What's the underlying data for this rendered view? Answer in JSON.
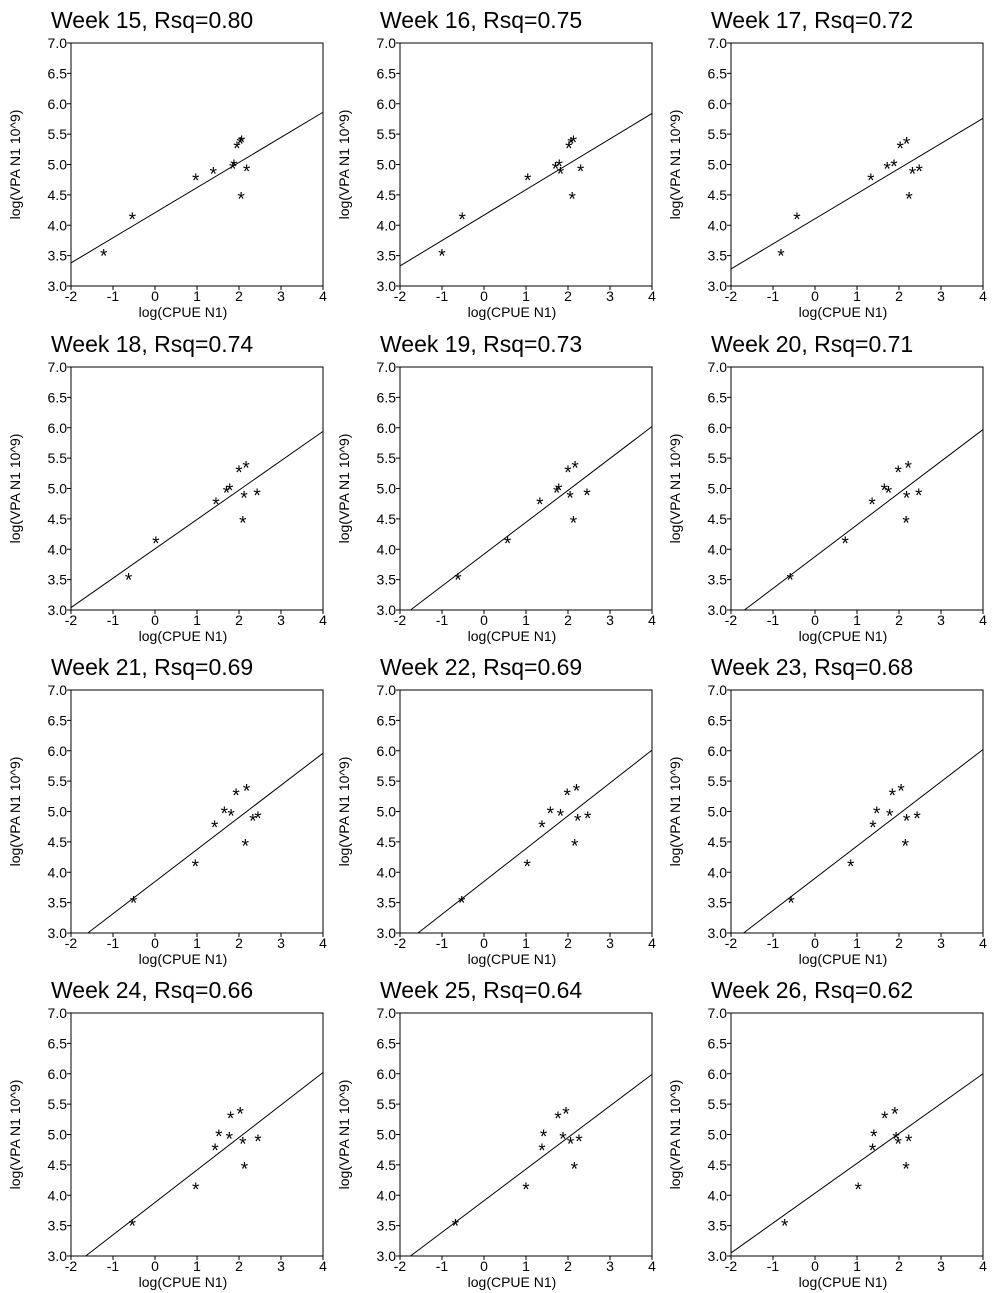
{
  "chart_data": [
    {
      "type": "scatter",
      "title": "Week 15, Rsq=0.80",
      "xlabel": "log(CPUE N1)",
      "ylabel": "log(VPA N1 10^9)",
      "xlim": [
        -2,
        4
      ],
      "ylim": [
        3.0,
        7.0
      ],
      "x_ticks": [
        "-2",
        "-1",
        "0",
        "1",
        "2",
        "3",
        "4"
      ],
      "y_ticks": [
        "3.0",
        "3.5",
        "4.0",
        "4.5",
        "5.0",
        "5.5",
        "6.0",
        "6.5",
        "7.0"
      ],
      "fit_line": [
        [
          -2,
          3.38
        ],
        [
          4,
          5.86
        ]
      ],
      "x": [
        -1.22,
        -0.54,
        0.97,
        1.39,
        1.85,
        1.88,
        1.95,
        2.03,
        2.05,
        2.06,
        2.18
      ],
      "y": [
        3.52,
        4.12,
        4.76,
        4.87,
        4.95,
        4.99,
        5.29,
        5.36,
        4.46,
        5.39,
        4.91
      ]
    },
    {
      "type": "scatter",
      "title": "Week 16, Rsq=0.75",
      "xlabel": "log(CPUE N1)",
      "ylabel": "log(VPA N1 10^9)",
      "xlim": [
        -2,
        4
      ],
      "ylim": [
        3.0,
        7.0
      ],
      "x_ticks": [
        "-2",
        "-1",
        "0",
        "1",
        "2",
        "3",
        "4"
      ],
      "y_ticks": [
        "3.0",
        "3.5",
        "4.0",
        "4.5",
        "5.0",
        "5.5",
        "6.0",
        "6.5",
        "7.0"
      ],
      "fit_line": [
        [
          -2,
          3.33
        ],
        [
          4,
          5.84
        ]
      ],
      "x": [
        -1.0,
        -0.52,
        1.04,
        1.7,
        1.79,
        1.82,
        2.02,
        2.07,
        2.1,
        2.13,
        2.3
      ],
      "y": [
        3.52,
        4.12,
        4.76,
        4.95,
        4.99,
        4.87,
        5.29,
        5.36,
        4.46,
        5.39,
        4.91
      ]
    },
    {
      "type": "scatter",
      "title": "Week 17, Rsq=0.72",
      "xlabel": "log(CPUE N1)",
      "ylabel": "log(VPA N1 10^9)",
      "xlim": [
        -2,
        4
      ],
      "ylim": [
        3.0,
        7.0
      ],
      "x_ticks": [
        "-2",
        "-1",
        "0",
        "1",
        "2",
        "3",
        "4"
      ],
      "y_ticks": [
        "3.0",
        "3.5",
        "4.0",
        "4.5",
        "5.0",
        "5.5",
        "6.0",
        "6.5",
        "7.0"
      ],
      "fit_line": [
        [
          -2,
          3.28
        ],
        [
          4,
          5.76
        ]
      ],
      "x": [
        -0.81,
        -0.43,
        1.33,
        1.72,
        1.88,
        2.03,
        2.18,
        2.24,
        2.32,
        2.48
      ],
      "y": [
        3.52,
        4.12,
        4.76,
        4.95,
        4.99,
        5.29,
        5.36,
        4.46,
        4.87,
        4.91
      ]
    },
    {
      "type": "scatter",
      "title": "Week 18, Rsq=0.74",
      "xlabel": "log(CPUE N1)",
      "ylabel": "log(VPA N1 10^9)",
      "xlim": [
        -2,
        4
      ],
      "ylim": [
        3.0,
        7.0
      ],
      "x_ticks": [
        "-2",
        "-1",
        "0",
        "1",
        "2",
        "3",
        "4"
      ],
      "y_ticks": [
        "3.0",
        "3.5",
        "4.0",
        "4.5",
        "5.0",
        "5.5",
        "6.0",
        "6.5",
        "7.0"
      ],
      "fit_line": [
        [
          -2,
          3.04
        ],
        [
          4,
          5.94
        ]
      ],
      "x": [
        -0.63,
        0.02,
        1.45,
        1.7,
        1.78,
        2.0,
        2.09,
        2.12,
        2.17,
        2.43
      ],
      "y": [
        3.52,
        4.12,
        4.76,
        4.95,
        4.99,
        5.29,
        4.46,
        4.87,
        5.36,
        4.91
      ]
    },
    {
      "type": "scatter",
      "title": "Week 19, Rsq=0.73",
      "xlabel": "log(CPUE N1)",
      "ylabel": "log(VPA N1 10^9)",
      "xlim": [
        -2,
        4
      ],
      "ylim": [
        3.0,
        7.0
      ],
      "x_ticks": [
        "-2",
        "-1",
        "0",
        "1",
        "2",
        "3",
        "4"
      ],
      "y_ticks": [
        "3.0",
        "3.5",
        "4.0",
        "4.5",
        "5.0",
        "5.5",
        "6.0",
        "6.5",
        "7.0"
      ],
      "fit_line": [
        [
          -1.75,
          3.0
        ],
        [
          4,
          6.02
        ]
      ],
      "x": [
        -0.62,
        0.56,
        1.33,
        1.73,
        1.78,
        2.0,
        2.05,
        2.13,
        2.17,
        2.45
      ],
      "y": [
        3.52,
        4.12,
        4.76,
        4.95,
        4.99,
        5.29,
        4.87,
        4.46,
        5.36,
        4.91
      ]
    },
    {
      "type": "scatter",
      "title": "Week 20, Rsq=0.71",
      "xlabel": "log(CPUE N1)",
      "ylabel": "log(VPA N1 10^9)",
      "xlim": [
        -2,
        4
      ],
      "ylim": [
        3.0,
        7.0
      ],
      "x_ticks": [
        "-2",
        "-1",
        "0",
        "1",
        "2",
        "3",
        "4"
      ],
      "y_ticks": [
        "3.0",
        "3.5",
        "4.0",
        "4.5",
        "5.0",
        "5.5",
        "6.0",
        "6.5",
        "7.0"
      ],
      "fit_line": [
        [
          -1.68,
          3.0
        ],
        [
          4,
          5.97
        ]
      ],
      "x": [
        -0.59,
        0.72,
        1.36,
        1.65,
        1.75,
        1.98,
        2.17,
        2.18,
        2.22,
        2.47
      ],
      "y": [
        3.52,
        4.12,
        4.76,
        4.99,
        4.95,
        5.29,
        4.46,
        4.87,
        5.36,
        4.91
      ]
    },
    {
      "type": "scatter",
      "title": "Week 21, Rsq=0.69",
      "xlabel": "log(CPUE N1)",
      "ylabel": "log(VPA N1 10^9)",
      "xlim": [
        -2,
        4
      ],
      "ylim": [
        3.0,
        7.0
      ],
      "x_ticks": [
        "-2",
        "-1",
        "0",
        "1",
        "2",
        "3",
        "4"
      ],
      "y_ticks": [
        "3.0",
        "3.5",
        "4.0",
        "4.5",
        "5.0",
        "5.5",
        "6.0",
        "6.5",
        "7.0"
      ],
      "fit_line": [
        [
          -1.6,
          3.0
        ],
        [
          4,
          5.96
        ]
      ],
      "x": [
        -0.51,
        0.96,
        1.42,
        1.65,
        1.81,
        1.93,
        2.15,
        2.18,
        2.33,
        2.45
      ],
      "y": [
        3.52,
        4.12,
        4.76,
        4.99,
        4.95,
        5.29,
        4.46,
        5.36,
        4.87,
        4.91
      ]
    },
    {
      "type": "scatter",
      "title": "Week 22, Rsq=0.69",
      "xlabel": "log(CPUE N1)",
      "ylabel": "log(VPA N1 10^9)",
      "xlim": [
        -2,
        4
      ],
      "ylim": [
        3.0,
        7.0
      ],
      "x_ticks": [
        "-2",
        "-1",
        "0",
        "1",
        "2",
        "3",
        "4"
      ],
      "y_ticks": [
        "3.0",
        "3.5",
        "4.0",
        "4.5",
        "5.0",
        "5.5",
        "6.0",
        "6.5",
        "7.0"
      ],
      "fit_line": [
        [
          -1.57,
          3.0
        ],
        [
          4,
          6.01
        ]
      ],
      "x": [
        -0.53,
        1.03,
        1.38,
        1.58,
        1.82,
        1.98,
        2.16,
        2.2,
        2.23,
        2.47
      ],
      "y": [
        3.52,
        4.12,
        4.76,
        4.99,
        4.95,
        5.29,
        4.46,
        5.36,
        4.87,
        4.91
      ]
    },
    {
      "type": "scatter",
      "title": "Week 23, Rsq=0.68",
      "xlabel": "log(CPUE N1)",
      "ylabel": "log(VPA N1 10^9)",
      "xlim": [
        -2,
        4
      ],
      "ylim": [
        3.0,
        7.0
      ],
      "x_ticks": [
        "-2",
        "-1",
        "0",
        "1",
        "2",
        "3",
        "4"
      ],
      "y_ticks": [
        "3.0",
        "3.5",
        "4.0",
        "4.5",
        "5.0",
        "5.5",
        "6.0",
        "6.5",
        "7.0"
      ],
      "fit_line": [
        [
          -1.7,
          3.0
        ],
        [
          4,
          6.02
        ]
      ],
      "x": [
        -0.57,
        0.85,
        1.38,
        1.47,
        1.78,
        1.84,
        2.05,
        2.15,
        2.18,
        2.43
      ],
      "y": [
        3.52,
        4.12,
        4.76,
        4.99,
        4.95,
        5.29,
        5.36,
        4.46,
        4.87,
        4.91
      ]
    },
    {
      "type": "scatter",
      "title": "Week 24, Rsq=0.66",
      "xlabel": "log(CPUE N1)",
      "ylabel": "log(VPA N1 10^9)",
      "xlim": [
        -2,
        4
      ],
      "ylim": [
        3.0,
        7.0
      ],
      "x_ticks": [
        "-2",
        "-1",
        "0",
        "1",
        "2",
        "3",
        "4"
      ],
      "y_ticks": [
        "3.0",
        "3.5",
        "4.0",
        "4.5",
        "5.0",
        "5.5",
        "6.0",
        "6.5",
        "7.0"
      ],
      "fit_line": [
        [
          -1.65,
          3.0
        ],
        [
          4,
          6.02
        ]
      ],
      "x": [
        -0.54,
        0.97,
        1.43,
        1.52,
        1.77,
        1.8,
        2.03,
        2.09,
        2.13,
        2.45
      ],
      "y": [
        3.52,
        4.12,
        4.76,
        4.99,
        4.95,
        5.29,
        5.36,
        4.87,
        4.46,
        4.91
      ]
    },
    {
      "type": "scatter",
      "title": "Week 25, Rsq=0.64",
      "xlabel": "log(CPUE N1)",
      "ylabel": "log(VPA N1 10^9)",
      "xlim": [
        -2,
        4
      ],
      "ylim": [
        3.0,
        7.0
      ],
      "x_ticks": [
        "-2",
        "-1",
        "0",
        "1",
        "2",
        "3",
        "4"
      ],
      "y_ticks": [
        "3.0",
        "3.5",
        "4.0",
        "4.5",
        "5.0",
        "5.5",
        "6.0",
        "6.5",
        "7.0"
      ],
      "fit_line": [
        [
          -1.75,
          3.0
        ],
        [
          4,
          5.99
        ]
      ],
      "x": [
        -0.68,
        1.0,
        1.38,
        1.42,
        1.76,
        1.88,
        1.95,
        2.06,
        2.15,
        2.26
      ],
      "y": [
        3.52,
        4.12,
        4.76,
        4.99,
        5.29,
        4.95,
        5.36,
        4.87,
        4.46,
        4.91
      ]
    },
    {
      "type": "scatter",
      "title": "Week 26, Rsq=0.62",
      "xlabel": "log(CPUE N1)",
      "ylabel": "log(VPA N1 10^9)",
      "xlim": [
        -2,
        4
      ],
      "ylim": [
        3.0,
        7.0
      ],
      "x_ticks": [
        "-2",
        "-1",
        "0",
        "1",
        "2",
        "3",
        "4"
      ],
      "y_ticks": [
        "3.0",
        "3.5",
        "4.0",
        "4.5",
        "5.0",
        "5.5",
        "6.0",
        "6.5",
        "7.0"
      ],
      "fit_line": [
        [
          -2,
          3.05
        ],
        [
          4,
          6.0
        ]
      ],
      "x": [
        -0.72,
        1.03,
        1.37,
        1.4,
        1.66,
        1.9,
        1.93,
        1.98,
        2.17,
        2.23
      ],
      "y": [
        3.52,
        4.12,
        4.76,
        4.99,
        5.29,
        5.36,
        4.95,
        4.87,
        4.46,
        4.91
      ]
    }
  ]
}
